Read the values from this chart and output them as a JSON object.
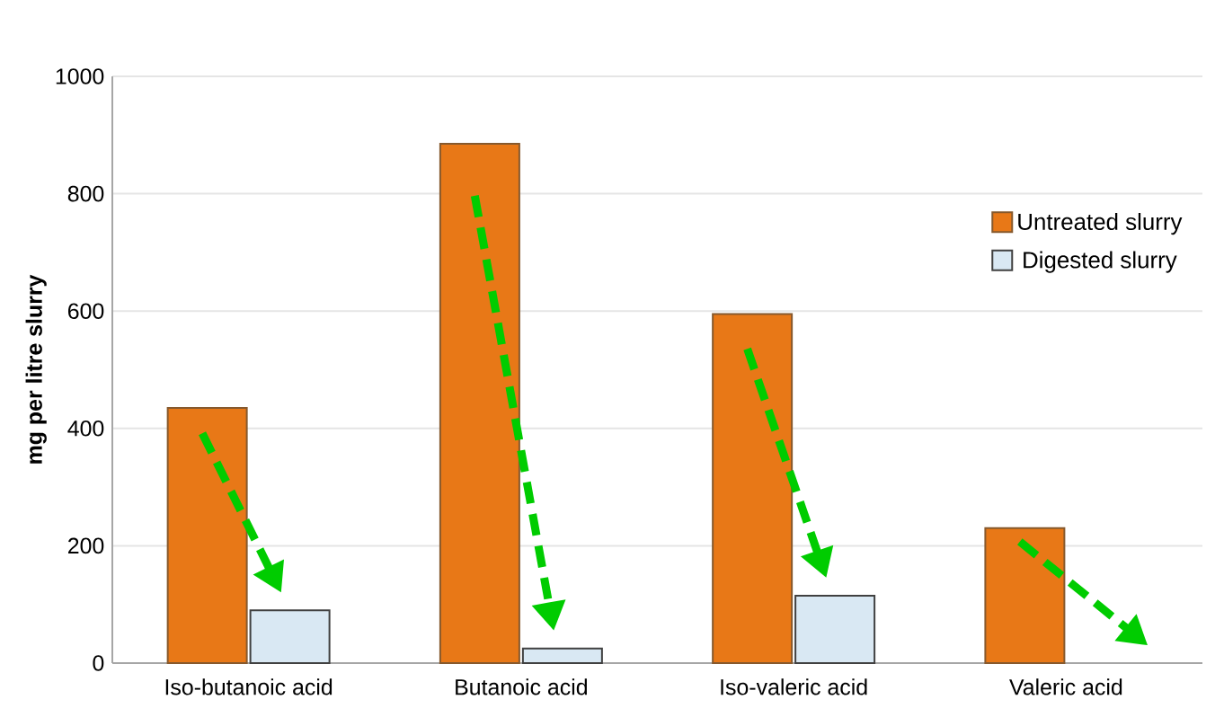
{
  "chart_data": {
    "type": "bar",
    "ylabel": "mg per litre slurry",
    "categories": [
      "Iso-butanoic acid",
      "Butanoic acid",
      "Iso-valeric acid",
      "Valeric acid"
    ],
    "series": [
      {
        "name": "Untreated slurry",
        "color": "#e87817",
        "values": [
          435,
          885,
          595,
          230
        ]
      },
      {
        "name": "Digested slurry",
        "color": "#d9e8f3",
        "values": [
          90,
          25,
          115,
          null
        ]
      }
    ],
    "ylim": [
      0,
      1000
    ],
    "yticks": [
      0,
      200,
      400,
      600,
      800,
      1000
    ],
    "grid": "y",
    "legend": "right"
  }
}
